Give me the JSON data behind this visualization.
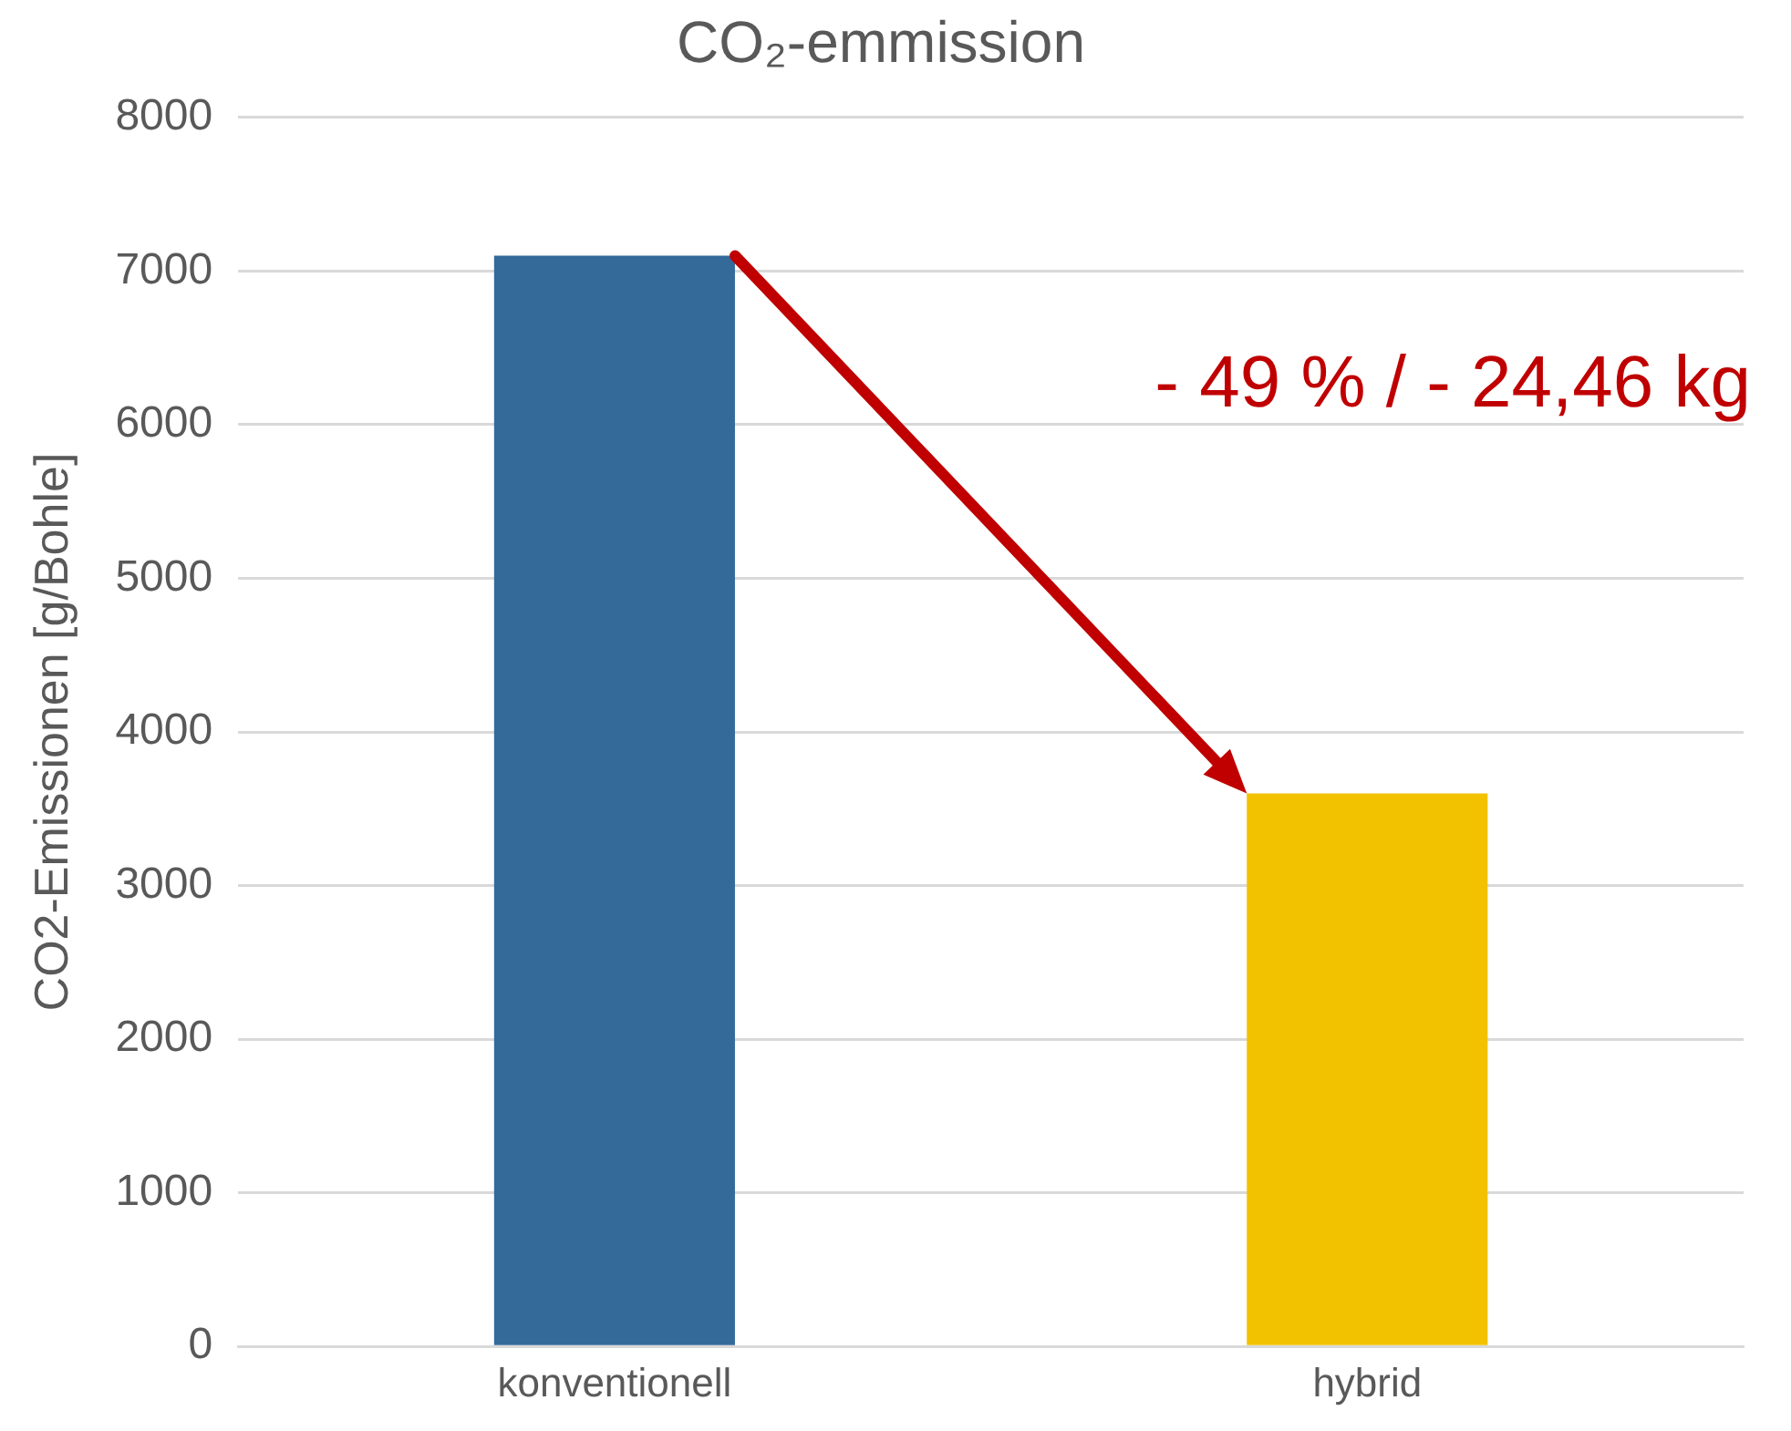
{
  "chart_data": {
    "type": "bar",
    "title": "CO₂-emmission",
    "ylabel": "CO2-Emissionen [g/Bohle]",
    "categories": [
      "konventionell",
      "hybrid"
    ],
    "values": [
      7100,
      3600
    ],
    "colors": [
      "#336a9a",
      "#f2c200"
    ],
    "ylim": [
      0,
      8000
    ],
    "yticks": [
      0,
      1000,
      2000,
      3000,
      4000,
      5000,
      6000,
      7000,
      8000
    ],
    "grid": "y",
    "legend": false,
    "annotations": [
      "- 49 % / - 24,46 kg"
    ]
  }
}
